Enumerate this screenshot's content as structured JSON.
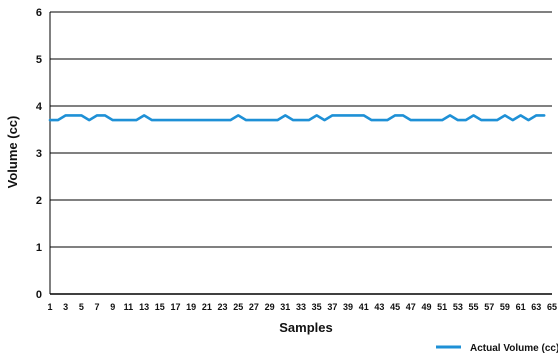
{
  "chart_data": {
    "type": "line",
    "title": "",
    "xlabel": "Samples",
    "ylabel": "Volume (cc)",
    "xlim": [
      1,
      65
    ],
    "ylim": [
      0,
      6
    ],
    "y_ticks": [
      0,
      1,
      2,
      3,
      4,
      5,
      6
    ],
    "x_ticks": [
      1,
      3,
      5,
      7,
      9,
      11,
      13,
      15,
      17,
      19,
      21,
      23,
      25,
      27,
      29,
      31,
      33,
      35,
      37,
      39,
      41,
      43,
      45,
      47,
      49,
      51,
      53,
      55,
      57,
      59,
      61,
      63,
      65
    ],
    "grid": true,
    "legend_position": "bottom-right",
    "colors": {
      "series": "#1e90d6",
      "grid": "#000000",
      "axis": "#000000"
    },
    "series": [
      {
        "name": "Actual Volume (cc)",
        "x": [
          1,
          2,
          3,
          4,
          5,
          6,
          7,
          8,
          9,
          10,
          11,
          12,
          13,
          14,
          15,
          16,
          17,
          18,
          19,
          20,
          21,
          22,
          23,
          24,
          25,
          26,
          27,
          28,
          29,
          30,
          31,
          32,
          33,
          34,
          35,
          36,
          37,
          38,
          39,
          40,
          41,
          42,
          43,
          44,
          45,
          46,
          47,
          48,
          49,
          50,
          51,
          52,
          53,
          54,
          55,
          56,
          57,
          58,
          59,
          60,
          61,
          62,
          63,
          64
        ],
        "values": [
          3.7,
          3.7,
          3.8,
          3.8,
          3.8,
          3.7,
          3.8,
          3.8,
          3.7,
          3.7,
          3.7,
          3.7,
          3.8,
          3.7,
          3.7,
          3.7,
          3.7,
          3.7,
          3.7,
          3.7,
          3.7,
          3.7,
          3.7,
          3.7,
          3.8,
          3.7,
          3.7,
          3.7,
          3.7,
          3.7,
          3.8,
          3.7,
          3.7,
          3.7,
          3.8,
          3.7,
          3.8,
          3.8,
          3.8,
          3.8,
          3.8,
          3.7,
          3.7,
          3.7,
          3.8,
          3.8,
          3.7,
          3.7,
          3.7,
          3.7,
          3.7,
          3.8,
          3.7,
          3.7,
          3.8,
          3.7,
          3.7,
          3.7,
          3.8,
          3.7,
          3.8,
          3.7,
          3.8,
          3.8
        ]
      }
    ]
  }
}
